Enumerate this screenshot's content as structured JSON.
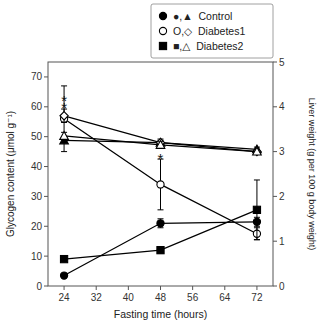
{
  "chart_data": {
    "type": "line",
    "x_label": "Fasting time (hours)",
    "y_label": "Glycogen content (μmol g⁻¹)",
    "y2_label": "Liver weight (g per 100 g body weight)",
    "x": [
      24,
      48,
      72
    ],
    "xlim": [
      20,
      76
    ],
    "xticks": [
      24,
      32,
      40,
      48,
      56,
      64,
      72
    ],
    "ylim": [
      0,
      75
    ],
    "yticks": [
      0,
      10,
      20,
      30,
      40,
      50,
      60,
      70
    ],
    "y2lim": [
      0,
      5
    ],
    "y2ticks": [
      0,
      1,
      2,
      3,
      4,
      5
    ],
    "grid": false,
    "legend": "top",
    "series": [
      {
        "name": "●,▲  Control",
        "axis": "y",
        "marker": "circle",
        "color": "black",
        "values": [
          3.5,
          21.0,
          21.5
        ],
        "errors": [
          0.5,
          1.5,
          1.5
        ]
      },
      {
        "name": "O,◇  Diabetes1",
        "axis": "y",
        "marker": "open-circle",
        "color": "black",
        "values": [
          56.0,
          34.0,
          17.5
        ],
        "errors": [
          11.0,
          8.5,
          2.0
        ]
      },
      {
        "name": "■,△  Diabetes2",
        "axis": "y",
        "marker": "square",
        "color": "black",
        "values": [
          9.0,
          12.0,
          25.5
        ],
        "errors": [
          0.8,
          1.0,
          10.0
        ]
      },
      {
        "axis": "y2",
        "marker": "triangle",
        "color": "black",
        "values": [
          3.25,
          3.2,
          3.05
        ],
        "errors": [
          0.05,
          0.05,
          0.05
        ]
      },
      {
        "axis": "y2",
        "marker": "open-diamond",
        "color": "black",
        "values": [
          3.8,
          3.2,
          3.0
        ],
        "errors": [
          0.15,
          0.08,
          0.05
        ]
      },
      {
        "axis": "y2",
        "marker": "open-triangle",
        "color": "black",
        "values": [
          3.35,
          3.15,
          3.0
        ],
        "errors": [
          0.08,
          0.07,
          0.05
        ]
      }
    ],
    "annotations": [
      {
        "text": "*",
        "x": 24,
        "y": 60,
        "axis": "y"
      },
      {
        "text": "*",
        "x": 48,
        "y": 43,
        "axis": "y"
      },
      {
        "text": "*",
        "x": 24,
        "y": 4.15,
        "axis": "y2"
      }
    ]
  }
}
